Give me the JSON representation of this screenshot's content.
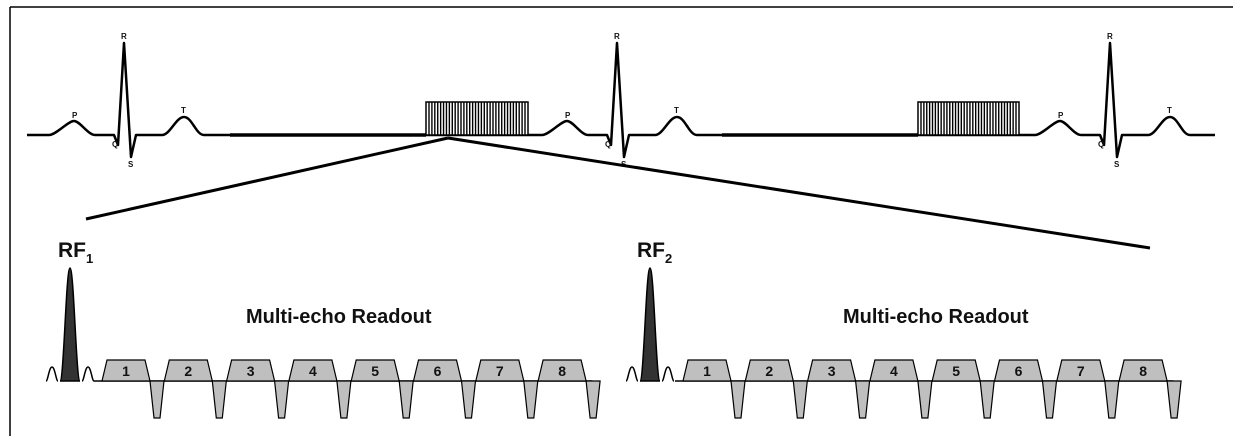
{
  "ecg": {
    "wave_labels": [
      "P",
      "Q",
      "R",
      "S",
      "T"
    ],
    "beat_count": 3
  },
  "rf_pulses": [
    {
      "base": "RF",
      "sub": "1"
    },
    {
      "base": "RF",
      "sub": "2"
    }
  ],
  "readouts": [
    {
      "title": "Multi-echo Readout",
      "echoes": [
        "1",
        "2",
        "3",
        "4",
        "5",
        "6",
        "7",
        "8"
      ]
    },
    {
      "title": "Multi-echo Readout",
      "echoes": [
        "1",
        "2",
        "3",
        "4",
        "5",
        "6",
        "7",
        "8"
      ]
    }
  ],
  "colors": {
    "line": "#000000",
    "gradient_fill": "#bfbfbf",
    "rf_fill": "#333333"
  }
}
